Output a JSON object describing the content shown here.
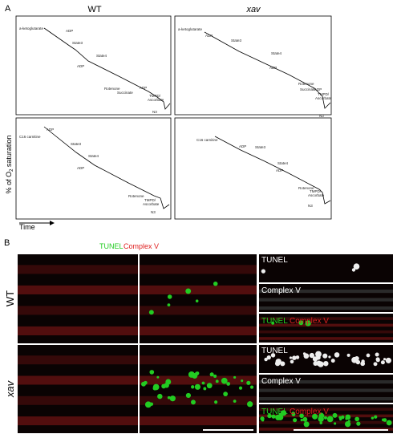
{
  "panel_a": {
    "label": "A",
    "columns": [
      "WT",
      "xav"
    ],
    "y_axis": {
      "pre": "% of O",
      "sub": "2",
      "post": " saturation"
    },
    "x_axis": "Time",
    "traces": [
      {
        "annotations": [
          "a-ketoglutarate",
          "ADP",
          "State3",
          "State4",
          "ADP",
          "Rotenone",
          "Succinate",
          "ADP",
          "TMPD/",
          "Ascorbate",
          "N3"
        ]
      },
      {
        "annotations": [
          "a-ketoglutarate",
          "ADP",
          "State3",
          "State4",
          "ADP",
          "Rotenone",
          "Succinate",
          "ADP",
          "TMPD/",
          "Ascorbate",
          "N3"
        ]
      },
      {
        "annotations": [
          "C16 carnitine",
          "ADP",
          "State3",
          "State4",
          "ADP",
          "Rotenone",
          "TMPD/",
          "Ascorbate",
          "N3"
        ]
      },
      {
        "annotations": [
          "C16 carnitine",
          "ADP",
          "State3",
          "State4",
          "ADP",
          "Rotenone",
          "TMPD/",
          "Ascorbate",
          "N3"
        ]
      }
    ]
  },
  "panel_b": {
    "label": "B",
    "legend": [
      "TUNEL",
      "Complex V"
    ],
    "rows": [
      "WT",
      "xav"
    ],
    "insets": [
      [
        "TUNEL",
        "Complex V",
        "TUNEL",
        "Complex V"
      ],
      [
        "TUNEL",
        "Complex V",
        "TUNEL",
        "Complex V"
      ]
    ]
  }
}
